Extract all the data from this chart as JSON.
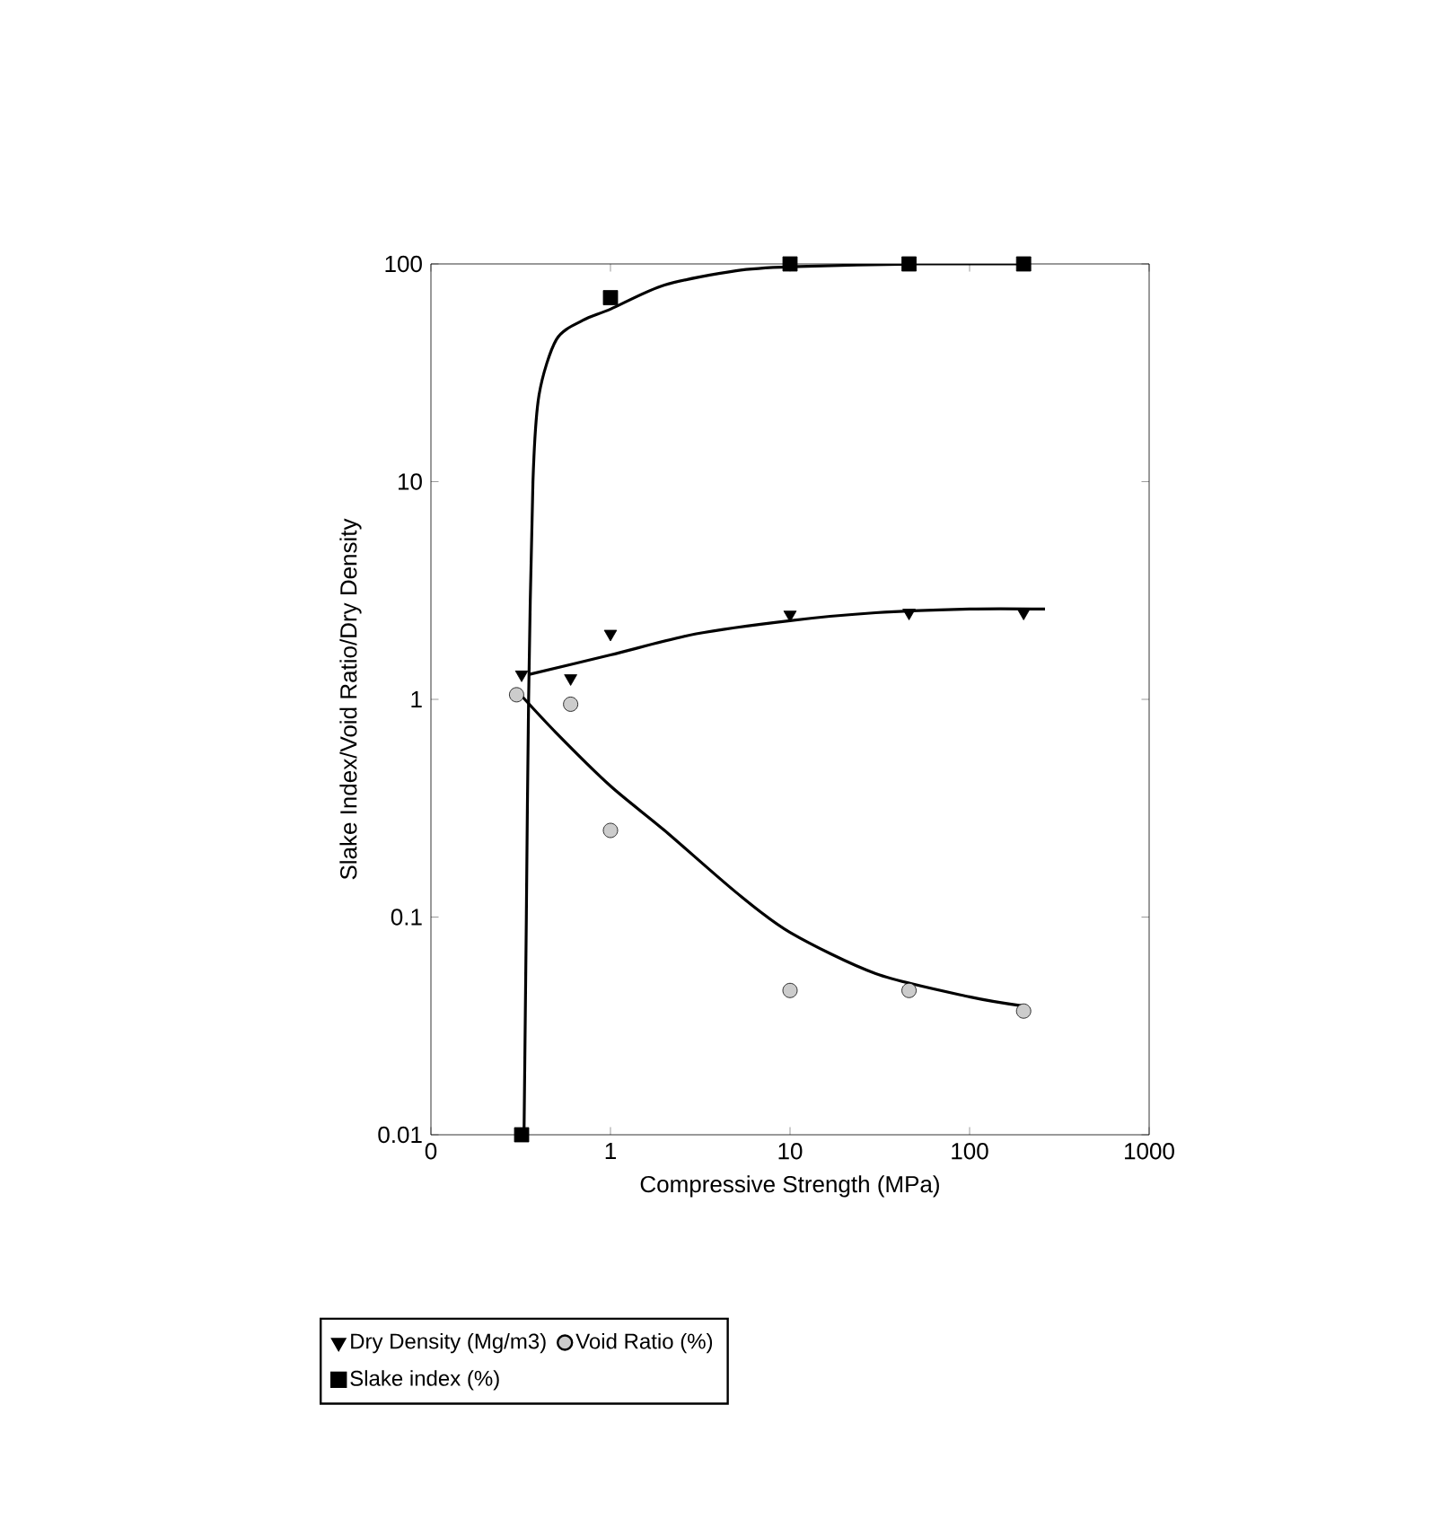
{
  "chart_data": {
    "type": "scatter",
    "xlabel": "Compressive Strength (MPa)",
    "ylabel": "Slake Index/Void Ratio/Dry Density",
    "log": "xy",
    "xlim": [
      0.1,
      1000
    ],
    "ylim": [
      0.01,
      100
    ],
    "xticks": [
      {
        "value": 0.1,
        "label": "0"
      },
      1,
      10,
      100,
      1000
    ],
    "yticks": [
      0.01,
      0.1,
      1,
      10,
      100
    ],
    "legend": "bottom",
    "grid": false,
    "series": [
      {
        "name": "Dry Density (Mg/m3)",
        "type": "scatter",
        "marker": "triangle",
        "color": "#000000",
        "x": [
          0.32,
          0.6,
          1,
          10,
          46,
          200
        ],
        "values": [
          1.3,
          1.25,
          2.0,
          2.45,
          2.5,
          2.5
        ]
      },
      {
        "name": "Void Ratio (%)",
        "type": "scatter",
        "marker": "circle",
        "color": "#000000",
        "x": [
          0.3,
          0.6,
          1,
          10,
          46,
          200
        ],
        "values": [
          1.05,
          0.95,
          0.25,
          0.046,
          0.046,
          0.037
        ]
      },
      {
        "name": "Slake index (%)",
        "type": "scatter",
        "marker": "square",
        "color": "#000000",
        "x": [
          0.32,
          1,
          10,
          46,
          200
        ],
        "values": [
          0.01,
          70,
          100,
          100,
          100
        ]
      },
      {
        "type": "line",
        "marker": "none",
        "color": "#000000",
        "x": [
          0.35,
          1,
          3,
          10,
          30,
          100,
          263
        ],
        "values": [
          1.3,
          1.6,
          2.0,
          2.3,
          2.5,
          2.6,
          2.6
        ]
      },
      {
        "type": "line",
        "marker": "none",
        "color": "#000000",
        "x": [
          0.3,
          0.5,
          1,
          2,
          5,
          10,
          30,
          100,
          200
        ],
        "values": [
          1.1,
          0.7,
          0.4,
          0.25,
          0.13,
          0.085,
          0.055,
          0.043,
          0.039
        ]
      },
      {
        "type": "line",
        "marker": "none",
        "color": "#000000",
        "x": [
          0.33,
          0.34,
          0.35,
          0.37,
          0.4,
          0.5,
          0.7,
          1,
          2,
          5,
          10,
          50,
          200
        ],
        "values": [
          0.01,
          0.1,
          1,
          10,
          25,
          45,
          55,
          62,
          80,
          93,
          97,
          100,
          100
        ]
      }
    ]
  }
}
